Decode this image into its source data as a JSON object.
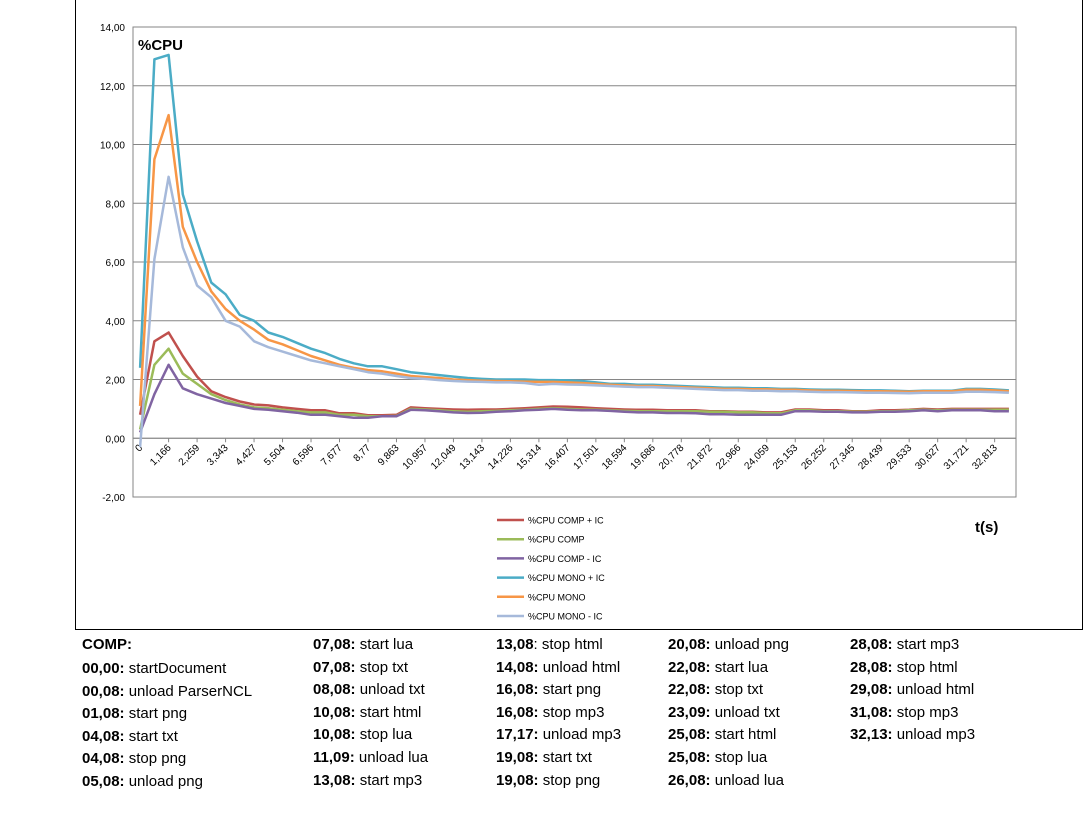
{
  "chart_data": {
    "type": "line",
    "title": "%CPU",
    "xlabel": "t(s)",
    "ylabel": "",
    "ylim": [
      -2,
      14
    ],
    "y_ticks": [
      "14,00",
      "12,00",
      "10,00",
      "8,00",
      "6,00",
      "4,00",
      "2,00",
      "0,00",
      "-2,00"
    ],
    "x_tick_labels": [
      "0",
      "1,166",
      "2,259",
      "3,343",
      "4,427",
      "5,504",
      "6,596",
      "7,677",
      "8,77",
      "9,863",
      "10,957",
      "12,049",
      "13,143",
      "14,226",
      "15,314",
      "16,407",
      "17,501",
      "18,594",
      "19,686",
      "20,778",
      "21,872",
      "22,966",
      "24,059",
      "25,153",
      "26,252",
      "27,345",
      "28,439",
      "29,533",
      "30,627",
      "31,721",
      "32,813"
    ],
    "x_points_per_tick": 2,
    "grid": true,
    "legend_position": "bottom-center",
    "series": [
      {
        "name": "%CPU COMP + IC",
        "color": "#C0504D",
        "values": [
          0.8,
          3.3,
          3.6,
          2.8,
          2.1,
          1.6,
          1.4,
          1.25,
          1.15,
          1.12,
          1.05,
          1.0,
          0.95,
          0.95,
          0.85,
          0.85,
          0.78,
          0.78,
          0.8,
          1.05,
          1.02,
          1.0,
          0.98,
          0.97,
          0.98,
          0.98,
          1.0,
          1.02,
          1.05,
          1.08,
          1.07,
          1.05,
          1.02,
          1.0,
          0.98,
          0.97,
          0.97,
          0.95,
          0.95,
          0.95,
          0.92,
          0.92,
          0.9,
          0.9,
          0.88,
          0.88,
          0.98,
          0.98,
          0.95,
          0.95,
          0.92,
          0.92,
          0.95,
          0.95,
          0.97,
          1.0,
          0.98,
          1.0,
          1.0,
          1.0,
          1.0,
          1.0
        ]
      },
      {
        "name": "%CPU COMP",
        "color": "#9BBB59",
        "values": [
          0.3,
          2.5,
          3.05,
          2.2,
          1.85,
          1.5,
          1.3,
          1.15,
          1.05,
          1.02,
          0.97,
          0.92,
          0.88,
          0.88,
          0.8,
          0.8,
          0.75,
          0.75,
          0.76,
          1.0,
          0.98,
          0.95,
          0.92,
          0.9,
          0.92,
          0.93,
          0.95,
          0.97,
          1.0,
          1.02,
          1.0,
          0.98,
          0.97,
          0.95,
          0.93,
          0.92,
          0.92,
          0.92,
          0.92,
          0.92,
          0.9,
          0.9,
          0.88,
          0.88,
          0.85,
          0.85,
          0.95,
          0.95,
          0.92,
          0.92,
          0.9,
          0.9,
          0.92,
          0.92,
          0.95,
          0.97,
          0.95,
          0.97,
          0.97,
          0.97,
          0.97,
          0.97
        ]
      },
      {
        "name": "%CPU COMP - IC",
        "color": "#8064A2",
        "values": [
          0.2,
          1.5,
          2.5,
          1.7,
          1.5,
          1.35,
          1.2,
          1.1,
          1.0,
          0.97,
          0.92,
          0.87,
          0.8,
          0.8,
          0.75,
          0.7,
          0.7,
          0.75,
          0.75,
          0.97,
          0.95,
          0.92,
          0.88,
          0.86,
          0.87,
          0.9,
          0.92,
          0.95,
          0.97,
          1.0,
          0.97,
          0.95,
          0.95,
          0.93,
          0.9,
          0.88,
          0.88,
          0.86,
          0.86,
          0.85,
          0.82,
          0.82,
          0.8,
          0.8,
          0.8,
          0.8,
          0.92,
          0.92,
          0.9,
          0.9,
          0.88,
          0.88,
          0.9,
          0.9,
          0.92,
          0.95,
          0.92,
          0.95,
          0.95,
          0.95,
          0.92,
          0.92
        ]
      },
      {
        "name": "%CPU MONO + IC",
        "color": "#4BACC6",
        "values": [
          2.4,
          12.9,
          13.05,
          8.3,
          6.7,
          5.3,
          4.9,
          4.2,
          4.0,
          3.6,
          3.45,
          3.25,
          3.05,
          2.9,
          2.7,
          2.55,
          2.45,
          2.45,
          2.35,
          2.25,
          2.2,
          2.15,
          2.1,
          2.05,
          2.02,
          2.0,
          2.0,
          2.0,
          1.98,
          1.98,
          1.97,
          1.95,
          1.9,
          1.85,
          1.85,
          1.82,
          1.82,
          1.8,
          1.78,
          1.76,
          1.74,
          1.72,
          1.72,
          1.7,
          1.7,
          1.68,
          1.68,
          1.66,
          1.65,
          1.65,
          1.64,
          1.63,
          1.63,
          1.62,
          1.6,
          1.62,
          1.62,
          1.62,
          1.68,
          1.68,
          1.66,
          1.63
        ]
      },
      {
        "name": "%CPU MONO",
        "color": "#F79646",
        "values": [
          1.1,
          9.5,
          11.0,
          7.2,
          6.0,
          5.0,
          4.4,
          4.0,
          3.7,
          3.35,
          3.2,
          3.0,
          2.8,
          2.65,
          2.5,
          2.4,
          2.32,
          2.28,
          2.2,
          2.12,
          2.08,
          2.05,
          2.0,
          1.98,
          1.96,
          1.95,
          1.94,
          1.93,
          1.92,
          1.92,
          1.9,
          1.88,
          1.85,
          1.82,
          1.8,
          1.78,
          1.78,
          1.76,
          1.74,
          1.72,
          1.7,
          1.68,
          1.68,
          1.67,
          1.67,
          1.65,
          1.65,
          1.63,
          1.62,
          1.62,
          1.61,
          1.6,
          1.6,
          1.59,
          1.58,
          1.6,
          1.6,
          1.6,
          1.65,
          1.65,
          1.63,
          1.6
        ]
      },
      {
        "name": "%CPU MONO - IC",
        "color": "#A6B9DA",
        "values": [
          -0.3,
          6.1,
          8.9,
          6.5,
          5.2,
          4.8,
          4.0,
          3.8,
          3.3,
          3.1,
          2.95,
          2.8,
          2.65,
          2.55,
          2.45,
          2.35,
          2.25,
          2.2,
          2.12,
          2.05,
          2.02,
          1.98,
          1.95,
          1.93,
          1.92,
          1.9,
          1.9,
          1.88,
          1.82,
          1.85,
          1.83,
          1.82,
          1.8,
          1.78,
          1.76,
          1.74,
          1.74,
          1.72,
          1.7,
          1.68,
          1.66,
          1.64,
          1.64,
          1.62,
          1.62,
          1.6,
          1.6,
          1.58,
          1.57,
          1.57,
          1.56,
          1.55,
          1.55,
          1.54,
          1.53,
          1.55,
          1.55,
          1.55,
          1.58,
          1.58,
          1.57,
          1.55
        ]
      }
    ]
  },
  "events": {
    "heading": "COMP:",
    "columns": [
      [
        {
          "time": "00,00:",
          "label": " startDocument"
        },
        {
          "time": "00,08:",
          "label": " unload ParserNCL"
        },
        {
          "time": "01,08:",
          "label": " start png"
        },
        {
          "time": "04,08:",
          "label": " start txt"
        },
        {
          "time": "04,08:",
          "label": " stop png"
        },
        {
          "time": "05,08:",
          "label": " unload png"
        }
      ],
      [
        {
          "time": "07,08:",
          "label": " start lua"
        },
        {
          "time": "07,08:",
          "label": " stop txt"
        },
        {
          "time": "08,08:",
          "label": " unload txt"
        },
        {
          "time": "10,08:",
          "label": " start html"
        },
        {
          "time": "10,08:",
          "label": " stop lua"
        },
        {
          "time": "11,09:",
          "label": " unload lua"
        },
        {
          "time": "13,08:",
          "label": " start mp3"
        }
      ],
      [
        {
          "time": "13,08",
          "label": ": stop html"
        },
        {
          "time": "14,08:",
          "label": " unload html"
        },
        {
          "time": "16,08:",
          "label": " start png"
        },
        {
          "time": "16,08:",
          "label": " stop mp3"
        },
        {
          "time": "17,17:",
          "label": " unload mp3"
        },
        {
          "time": "19,08:",
          "label": " start txt"
        },
        {
          "time": "19,08:",
          "label": " stop png"
        }
      ],
      [
        {
          "time": "20,08:",
          "label": " unload png"
        },
        {
          "time": "22,08:",
          "label": " start lua"
        },
        {
          "time": "22,08:",
          "label": " stop txt"
        },
        {
          "time": "23,09:",
          "label": " unload txt"
        },
        {
          "time": "25,08:",
          "label": " start html"
        },
        {
          "time": "25,08:",
          "label": " stop lua"
        },
        {
          "time": "26,08:",
          "label": " unload lua"
        }
      ],
      [
        {
          "time": "28,08:",
          "label": " start mp3"
        },
        {
          "time": "28,08:",
          "label": " stop html"
        },
        {
          "time": "29,08:",
          "label": " unload html"
        },
        {
          "time": "31,08:",
          "label": " stop mp3"
        },
        {
          "time": "32,13:",
          "label": " unload mp3"
        }
      ]
    ]
  }
}
